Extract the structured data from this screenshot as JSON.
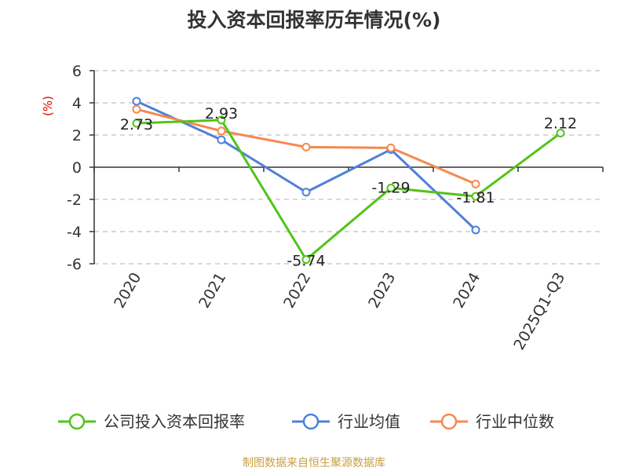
{
  "chart_data": {
    "type": "line",
    "title": "投入资本回报率历年情况(%)",
    "ylabel": "(%)",
    "categories": [
      "2020",
      "2021",
      "2022",
      "2023",
      "2024",
      "2025Q1-Q3"
    ],
    "ylim": [
      -6,
      6
    ],
    "yticks": [
      6,
      4,
      2,
      0,
      -2,
      -4,
      -6
    ],
    "grid": true,
    "legend_position": "bottom",
    "series": [
      {
        "name": "公司投入资本回报率",
        "color": "#52c41a",
        "values": [
          2.73,
          2.93,
          -5.74,
          -1.29,
          -1.81,
          2.12
        ],
        "labels": [
          "2.73",
          "2.93",
          "-5.74",
          "-1.29",
          "-1.81",
          "2.12"
        ]
      },
      {
        "name": "行业均值",
        "color": "#4f80d9",
        "values": [
          4.1,
          1.7,
          -1.55,
          1.1,
          -3.9,
          null
        ]
      },
      {
        "name": "行业中位数",
        "color": "#f5894f",
        "values": [
          3.6,
          2.25,
          1.25,
          1.2,
          -1.05,
          null
        ]
      }
    ]
  },
  "source": "制图数据来自恒生聚源数据库"
}
